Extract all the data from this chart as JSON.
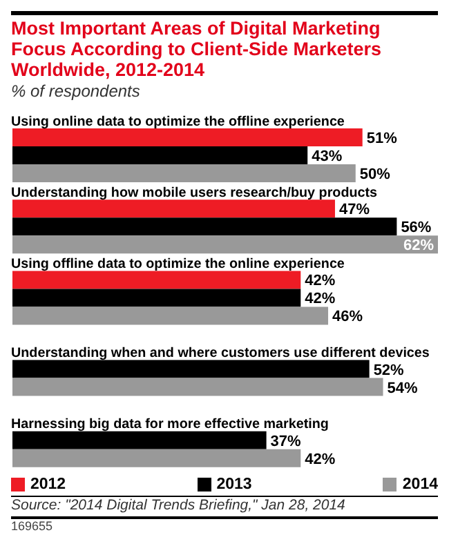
{
  "chart_data": {
    "type": "bar",
    "orientation": "horizontal",
    "title": "Most Important Areas of Digital Marketing Focus According to Client-Side Marketers Worldwide, 2012-2014",
    "subtitle": "% of respondents",
    "categories": [
      "Using online data to optimize the offline experience",
      "Understanding how mobile users research/buy products",
      "Using offline data to optimize the online experience",
      "Understanding when and where customers use different devices",
      "Harnessing big data for more effective marketing"
    ],
    "series": [
      {
        "name": "2012",
        "color": "#ee1c25",
        "values": [
          51,
          47,
          42,
          null,
          null
        ],
        "value_labels": [
          "51%",
          "47%",
          "42%",
          null,
          null
        ]
      },
      {
        "name": "2013",
        "color": "#000000",
        "values": [
          43,
          56,
          42,
          52,
          37
        ],
        "value_labels": [
          "43%",
          "56%",
          "42%",
          "52%",
          "37%"
        ]
      },
      {
        "name": "2014",
        "color": "#999999",
        "values": [
          50,
          62,
          46,
          54,
          42
        ],
        "value_labels": [
          "50%",
          "62%",
          "46%",
          "54%",
          "42%"
        ]
      }
    ],
    "legend": "bottom",
    "tick_labels": "y",
    "annotations": [
      "Source: \"2014 Digital Trends Briefing,\" Jan 28, 2014",
      "169655"
    ]
  }
}
